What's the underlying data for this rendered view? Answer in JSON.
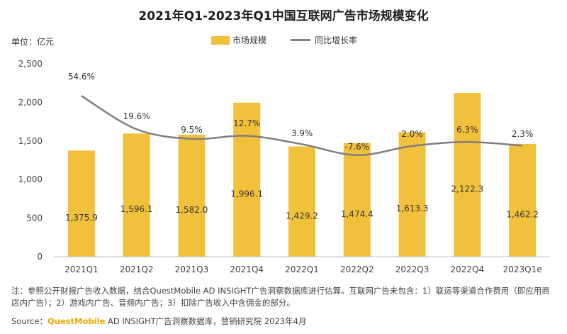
{
  "title": "2021年Q1-2023年Q1中国互联网广告市场规模变化",
  "unit_label": "单位：亿元",
  "legend": {
    "bar": "市场规模",
    "line": "同比增长率"
  },
  "colors": {
    "bar": "#f2c13c",
    "line": "#7f7f7f",
    "axis": "#bfbfbf"
  },
  "note": "注：参照公开财报广告收入数据，结合QuestMobile AD INSIGHT广告洞察数据库进行估算。互联网广告未包含：1）联运等渠道合作费用（即应用商店内广告）；2）游戏内广告、音频内广告；3）扣除广告收入中含佣金的部分。",
  "source": {
    "prefix": "Source：",
    "brand": "QuestMobile",
    "rest": " AD INSIGHT广告洞察数据库，营销研究院 2023年4月"
  },
  "chart_data": {
    "type": "bar",
    "categories": [
      "2021Q1",
      "2021Q2",
      "2021Q3",
      "2021Q4",
      "2022Q1",
      "2022Q2",
      "2022Q3",
      "2022Q4",
      "2023Q1e"
    ],
    "series": [
      {
        "name": "市场规模",
        "type": "bar",
        "values": [
          1375.9,
          1596.1,
          1582.0,
          1996.1,
          1429.2,
          1474.4,
          1613.3,
          2122.3,
          1462.2
        ],
        "labels": [
          "1,375.9",
          "1,596.1",
          "1,582.0",
          "1,996.1",
          "1,429.2",
          "1,474.4",
          "1,613.3",
          "2,122.3",
          "1,462.2"
        ]
      },
      {
        "name": "同比增长率",
        "type": "line",
        "values": [
          54.6,
          19.6,
          9.5,
          12.7,
          3.9,
          -7.6,
          2.0,
          6.3,
          2.3
        ],
        "labels": [
          "54.6%",
          "19.6%",
          "9.5%",
          "12.7%",
          "3.9%",
          "-7.6%",
          "2.0%",
          "6.3%",
          "2.3%"
        ]
      }
    ],
    "y_ticks": [
      "0",
      "500",
      "1,000",
      "1,500",
      "2,000",
      "2,500"
    ],
    "ylim": [
      0,
      2500
    ],
    "grid": false,
    "legend_position": "top-center"
  }
}
